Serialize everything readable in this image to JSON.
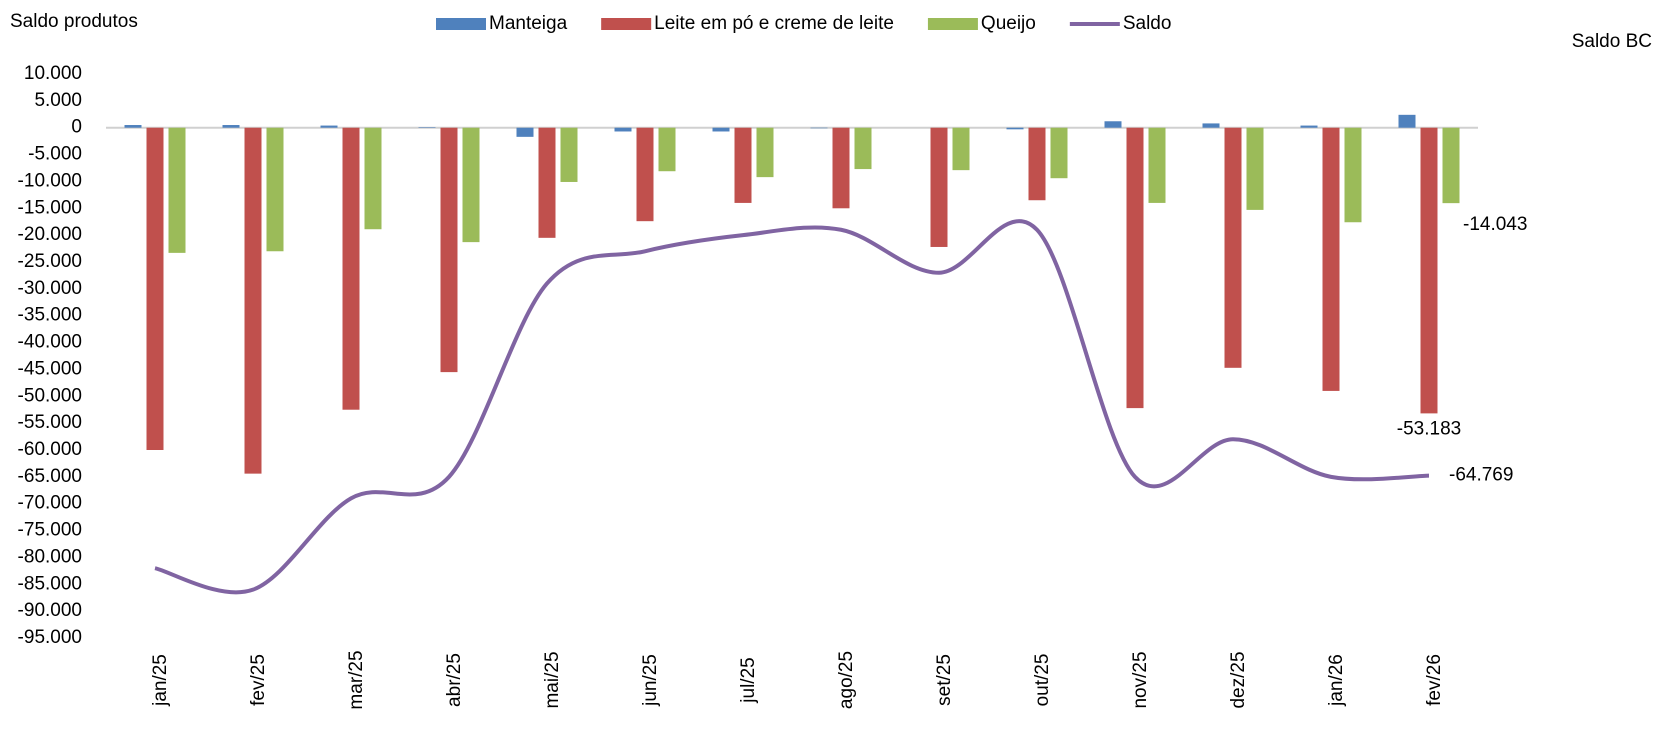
{
  "chart_data": {
    "type": "bar-line",
    "title": "Saldo produtos",
    "y2label": "Saldo BC",
    "categories": [
      "jan/25",
      "fev/25",
      "mar/25",
      "abr/25",
      "mai/25",
      "jun/25",
      "jul/25",
      "ago/25",
      "set/25",
      "out/25",
      "nov/25",
      "dez/25",
      "jan/26",
      "fev/26"
    ],
    "series": [
      {
        "name": "Manteiga",
        "type": "bar",
        "color": "#4f81bd",
        "values": [
          500,
          500,
          400,
          100,
          -1700,
          -700,
          -700,
          -100,
          0,
          -300,
          1200,
          800,
          400,
          2400
        ]
      },
      {
        "name": "Leite em pó e creme de leite",
        "type": "bar",
        "color": "#c0504d",
        "values": [
          -60000,
          -64400,
          -52500,
          -45500,
          -20500,
          -17400,
          -14000,
          -15000,
          -22200,
          -13500,
          -52200,
          -44700,
          -49000,
          -53183
        ],
        "value_labels": [
          null,
          null,
          null,
          null,
          null,
          null,
          null,
          null,
          null,
          null,
          null,
          null,
          null,
          "-53.183"
        ]
      },
      {
        "name": "Queijo",
        "type": "bar",
        "color": "#9bbb59",
        "values": [
          -23300,
          -23000,
          -18900,
          -21300,
          -10100,
          -8100,
          -9200,
          -7700,
          -7900,
          -9400,
          -14000,
          -15300,
          -17600,
          -14043
        ],
        "value_labels": [
          null,
          null,
          null,
          null,
          null,
          null,
          null,
          null,
          null,
          null,
          null,
          null,
          null,
          "-14.043"
        ]
      },
      {
        "name": "Saldo",
        "type": "line",
        "color": "#8064a2",
        "values": [
          -82000,
          -86000,
          -69000,
          -65000,
          -29000,
          -23000,
          -20000,
          -19000,
          -27000,
          -19000,
          -65000,
          -58000,
          -65000,
          -64769
        ],
        "value_labels": [
          null,
          null,
          null,
          null,
          null,
          null,
          null,
          null,
          null,
          null,
          null,
          null,
          null,
          "-64.769"
        ]
      }
    ],
    "ylim": [
      -95000,
      10000
    ],
    "yticks": [
      {
        "value": 10000,
        "label": "10.000"
      },
      {
        "value": 5000,
        "label": "5.000"
      },
      0,
      {
        "value": -5000,
        "label": "-5.000"
      },
      {
        "value": -10000,
        "label": "-10.000"
      },
      {
        "value": -15000,
        "label": "-15.000"
      },
      {
        "value": -20000,
        "label": "-20.000"
      },
      {
        "value": -25000,
        "label": "-25.000"
      },
      {
        "value": -30000,
        "label": "-30.000"
      },
      {
        "value": -35000,
        "label": "-35.000"
      },
      {
        "value": -40000,
        "label": "-40.000"
      },
      {
        "value": -45000,
        "label": "-45.000"
      },
      {
        "value": -50000,
        "label": "-50.000"
      },
      {
        "value": -55000,
        "label": "-55.000"
      },
      {
        "value": -60000,
        "label": "-60.000"
      },
      {
        "value": -65000,
        "label": "-65.000"
      },
      {
        "value": -70000,
        "label": "-70.000"
      },
      {
        "value": -75000,
        "label": "-75.000"
      },
      {
        "value": -80000,
        "label": "-80.000"
      },
      {
        "value": -85000,
        "label": "-85.000"
      },
      {
        "value": -90000,
        "label": "-90.000"
      },
      {
        "value": -95000,
        "label": "-95.000"
      }
    ],
    "legend": "top"
  }
}
